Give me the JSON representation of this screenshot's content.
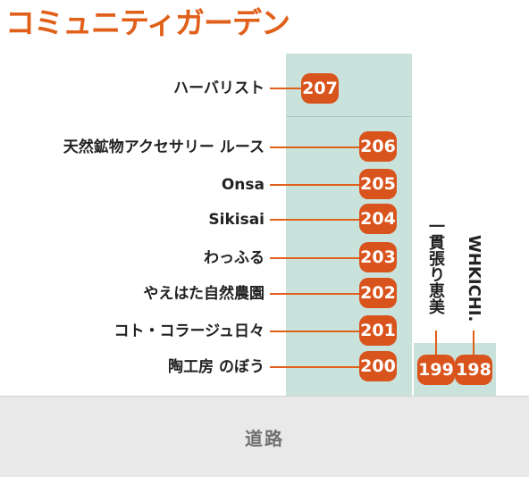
{
  "title": "コミュニティガーデン",
  "road": "道路",
  "shops": [
    {
      "number": "207",
      "name": "ハーバリスト"
    },
    {
      "number": "206",
      "name": "天然鉱物アクセサリー ルース"
    },
    {
      "number": "205",
      "name": "Onsa"
    },
    {
      "number": "204",
      "name": "Sikisai"
    },
    {
      "number": "203",
      "name": "わっふる"
    },
    {
      "number": "202",
      "name": "やえはた自然農園"
    },
    {
      "number": "201",
      "name": "コト・コラージュ日々"
    },
    {
      "number": "200",
      "name": "陶工房 のぼう"
    },
    {
      "number": "199",
      "name": "一貫張り恵美"
    },
    {
      "number": "198",
      "name": "WHKICHI."
    }
  ],
  "colors": {
    "accent": "#e0601a",
    "badge": "#d9531c",
    "block": "#c9e3dc",
    "road": "#e9e9e9"
  }
}
